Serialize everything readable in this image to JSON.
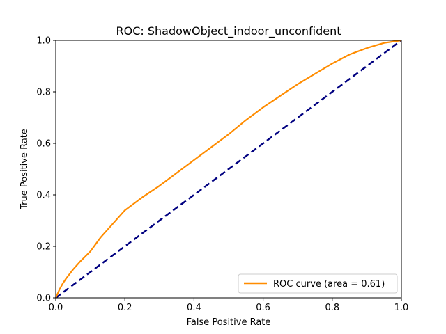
{
  "chart_data": {
    "type": "line",
    "title": "ROC: ShadowObject_indoor_unconfident",
    "xlabel": "False Positive Rate",
    "ylabel": "True Positive Rate",
    "xlim": [
      0.0,
      1.0
    ],
    "ylim": [
      0.0,
      1.0
    ],
    "xticks": [
      "0.0",
      "0.2",
      "0.4",
      "0.6",
      "0.8",
      "1.0"
    ],
    "yticks": [
      "0.0",
      "0.2",
      "0.4",
      "0.6",
      "0.8",
      "1.0"
    ],
    "grid": false,
    "legend_position": "lower-right",
    "series": [
      {
        "name": "ROC curve (area = 0.61)",
        "color": "#ff8c00",
        "style": "solid",
        "x": [
          0.0,
          0.01,
          0.02,
          0.03,
          0.05,
          0.07,
          0.1,
          0.13,
          0.15,
          0.18,
          0.2,
          0.25,
          0.3,
          0.35,
          0.4,
          0.45,
          0.5,
          0.55,
          0.6,
          0.65,
          0.7,
          0.75,
          0.8,
          0.85,
          0.9,
          0.95,
          1.0
        ],
        "y": [
          0.0,
          0.03,
          0.055,
          0.075,
          0.11,
          0.14,
          0.18,
          0.235,
          0.265,
          0.31,
          0.34,
          0.39,
          0.435,
          0.485,
          0.535,
          0.585,
          0.635,
          0.69,
          0.74,
          0.785,
          0.83,
          0.87,
          0.91,
          0.945,
          0.97,
          0.99,
          1.0
        ]
      }
    ],
    "reference_line": {
      "color": "#000080",
      "style": "dashed",
      "x": [
        0.0,
        1.0
      ],
      "y": [
        0.0,
        1.0
      ]
    }
  }
}
